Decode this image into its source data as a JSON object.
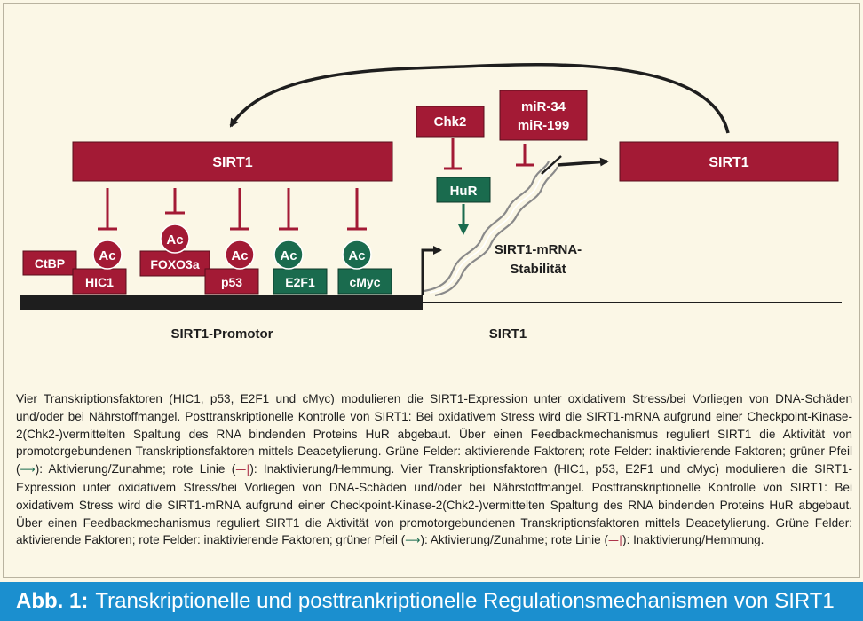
{
  "colors": {
    "red": "#a31a35",
    "green": "#1a6b4e",
    "footer": "#1b8fcf",
    "background": "#fbf7e6"
  },
  "diagram": {
    "sirt1_left": "SIRT1",
    "sirt1_right": "SIRT1",
    "chk2": "Chk2",
    "hur": "HuR",
    "mir_line1": "miR-34",
    "mir_line2": "miR-199",
    "ctbp": "CtBP",
    "hic1": "HIC1",
    "foxo3a": "FOXO3a",
    "p53": "p53",
    "e2f1": "E2F1",
    "cmyc": "cMyc",
    "ac": "Ac",
    "mrna_line1": "SIRT1-mRNA-",
    "mrna_line2": "Stabilität",
    "promotor": "SIRT1-Promotor",
    "gene": "SIRT1"
  },
  "caption": {
    "text_1": "Vier Transkriptionsfaktoren (HIC1, p53, E2F1 und cMyc) modulieren die SIRT1-Expression unter oxidativem Stress/bei Vorliegen von DNA-Schäden und/oder bei Nährstoffmangel. Posttranskriptionelle Kontrolle von SIRT1: Bei oxidativem Stress wird die SIRT1-mRNA aufgrund einer Checkpoint-Kinase-2(Chk2-)vermittelten Spaltung des RNA bindenden Proteins HuR abgebaut. Über einen Feedbackmechanismus reguliert SIRT1 die Aktivität von promotorgebundenen Transkriptionsfaktoren mittels Deacetylierung. Grüne Felder: aktivierende Faktoren; rote Felder: inaktivierende Faktoren; grüner Pfeil (",
    "arrow_1": "⟶",
    "text_2": "): Aktivierung/Zunahme; rote Linie (",
    "inhib_1": "—|",
    "text_3": "): Inaktivierung/Hemmung. Vier Transkriptionsfaktoren (HIC1, p53, E2F1 und cMyc) modulieren die SIRT1-Expression unter oxidativem Stress/bei Vorliegen von DNA-Schäden und/oder bei Nährstoffmangel. Posttranskriptionelle Kontrolle von SIRT1: Bei oxidativem Stress wird die SIRT1-mRNA aufgrund einer Checkpoint-Kinase-2(Chk2-)vermittelten Spaltung des RNA bindenden Proteins HuR abgebaut. Über einen Feedbackmechanismus reguliert SIRT1 die Aktivität von promotorgebundenen Transkriptionsfaktoren mittels Deacetylierung. Grüne Felder: aktivierende Faktoren; rote Felder: inaktivierende Faktoren; grüner Pfeil (",
    "arrow_2": "⟶",
    "text_4": "): Aktivierung/Zunahme; rote Linie (",
    "inhib_2": "—|",
    "text_5": "): Inaktivierung/Hemmung."
  },
  "footer": {
    "label": "Abb. 1:",
    "title": "Transkriptionelle und posttrankriptionelle Regulationsmechanismen von SIRT1"
  }
}
